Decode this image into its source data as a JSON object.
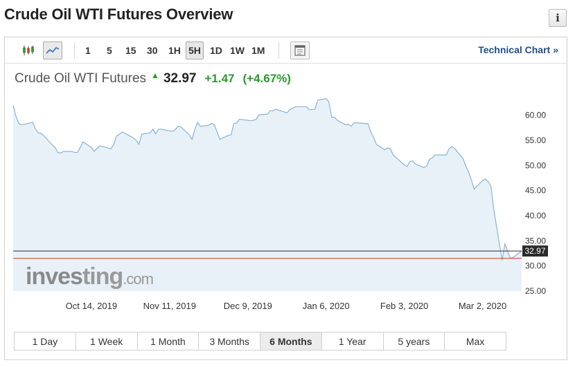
{
  "page": {
    "title": "Crude Oil WTI Futures Overview",
    "info_icon": "info-icon"
  },
  "toolbar": {
    "chart_type_icons": [
      "candlestick-icon",
      "line-chart-icon"
    ],
    "selected_chart_type": "line-chart-icon",
    "timeframes": [
      "1",
      "5",
      "15",
      "30",
      "1H",
      "5H",
      "1D",
      "1W",
      "1M"
    ],
    "active_timeframe": "5H",
    "settings_icon": "chart-settings-icon",
    "technical_chart_label": "Technical Chart",
    "technical_chart_arrow": "»"
  },
  "quote": {
    "name": "Crude Oil WTI Futures",
    "direction_icon": "up-arrow-icon",
    "price": "32.97",
    "change": "+1.47",
    "change_percent": "(+4.67%)",
    "positive_color": "#2a9a2a"
  },
  "watermark": {
    "part1": "inves",
    "part2": "ting",
    "part3": ".com"
  },
  "ranges": {
    "items": [
      "1 Day",
      "1 Week",
      "1 Month",
      "3 Months",
      "6 Months",
      "1 Year",
      "5 years",
      "Max"
    ],
    "active": "6 Months"
  },
  "colors": {
    "line": "#88b3d7",
    "area": "#e3eef6",
    "last_price_line": "#2b2b2b",
    "reference_line": "#d9362c"
  },
  "chart_data": {
    "type": "area",
    "title": "Crude Oil WTI Futures",
    "x_tick_labels": [
      "Oct 14, 2019",
      "Nov 11, 2019",
      "Dec 9, 2019",
      "Jan 6, 2020",
      "Feb 3, 2020",
      "Mar 2, 2020"
    ],
    "y_tick_labels": [
      "60.00",
      "55.00",
      "50.00",
      "45.00",
      "40.00",
      "35.00",
      "30.00",
      "25.00"
    ],
    "ylim": [
      25,
      64.5
    ],
    "grid": false,
    "last_price_label": "32.97",
    "last_price": 32.97,
    "reference_price": 31.5,
    "series": [
      {
        "x": [
          "2019-09-16",
          "2019-09-17",
          "2019-09-18",
          "2019-09-19",
          "2019-09-20",
          "2019-09-23",
          "2019-09-24",
          "2019-09-25",
          "2019-09-26",
          "2019-09-27",
          "2019-09-30",
          "2019-10-01",
          "2019-10-02",
          "2019-10-03",
          "2019-10-04",
          "2019-10-07",
          "2019-10-08",
          "2019-10-09",
          "2019-10-10",
          "2019-10-11",
          "2019-10-14",
          "2019-10-15",
          "2019-10-16",
          "2019-10-17",
          "2019-10-18",
          "2019-10-21",
          "2019-10-22",
          "2019-10-23",
          "2019-10-24",
          "2019-10-25",
          "2019-10-28",
          "2019-10-29",
          "2019-10-30",
          "2019-10-31",
          "2019-11-01",
          "2019-11-04",
          "2019-11-05",
          "2019-11-06",
          "2019-11-07",
          "2019-11-08",
          "2019-11-11",
          "2019-11-12",
          "2019-11-13",
          "2019-11-14",
          "2019-11-15",
          "2019-11-18",
          "2019-11-19",
          "2019-11-20",
          "2019-11-21",
          "2019-11-22",
          "2019-11-25",
          "2019-11-26",
          "2019-11-27",
          "2019-11-29",
          "2019-12-02",
          "2019-12-03",
          "2019-12-04",
          "2019-12-05",
          "2019-12-06",
          "2019-12-09",
          "2019-12-10",
          "2019-12-11",
          "2019-12-12",
          "2019-12-13",
          "2019-12-16",
          "2019-12-17",
          "2019-12-18",
          "2019-12-19",
          "2019-12-20",
          "2019-12-23",
          "2019-12-24",
          "2019-12-26",
          "2019-12-27",
          "2019-12-30",
          "2019-12-31",
          "2020-01-02",
          "2020-01-03",
          "2020-01-06",
          "2020-01-07",
          "2020-01-08",
          "2020-01-09",
          "2020-01-10",
          "2020-01-13",
          "2020-01-14",
          "2020-01-15",
          "2020-01-16",
          "2020-01-17",
          "2020-01-21",
          "2020-01-22",
          "2020-01-23",
          "2020-01-24",
          "2020-01-27",
          "2020-01-28",
          "2020-01-29",
          "2020-01-30",
          "2020-01-31",
          "2020-02-03",
          "2020-02-04",
          "2020-02-05",
          "2020-02-06",
          "2020-02-07",
          "2020-02-10",
          "2020-02-11",
          "2020-02-12",
          "2020-02-13",
          "2020-02-14",
          "2020-02-18",
          "2020-02-19",
          "2020-02-20",
          "2020-02-21",
          "2020-02-24",
          "2020-02-25",
          "2020-02-26",
          "2020-02-27",
          "2020-02-28",
          "2020-03-02",
          "2020-03-03",
          "2020-03-04",
          "2020-03-05",
          "2020-03-06",
          "2020-03-09",
          "2020-03-10",
          "2020-03-11",
          "2020-03-12",
          "2020-03-13",
          "2020-03-16"
        ],
        "y": [
          62.0,
          59.8,
          58.4,
          58.1,
          58.2,
          58.6,
          57.2,
          56.5,
          56.4,
          55.9,
          54.1,
          53.6,
          52.6,
          52.5,
          52.8,
          52.8,
          52.6,
          52.6,
          53.6,
          54.7,
          53.6,
          52.8,
          53.4,
          53.9,
          53.8,
          53.3,
          54.2,
          55.9,
          56.2,
          56.7,
          55.8,
          55.5,
          55.0,
          54.2,
          56.2,
          56.5,
          57.2,
          56.3,
          57.2,
          57.2,
          56.9,
          56.8,
          57.1,
          57.8,
          57.7,
          56.1,
          55.2,
          57.1,
          58.6,
          57.8,
          58.0,
          58.4,
          58.1,
          55.2,
          56.0,
          56.1,
          58.4,
          58.4,
          59.2,
          59.0,
          58.9,
          59.0,
          59.2,
          60.1,
          60.2,
          60.9,
          60.9,
          61.2,
          61.0,
          60.5,
          61.1,
          61.7,
          61.7,
          61.7,
          61.1,
          61.2,
          63.0,
          63.3,
          62.7,
          59.6,
          59.6,
          59.0,
          58.1,
          58.2,
          57.8,
          58.5,
          58.5,
          58.3,
          56.7,
          55.6,
          54.2,
          53.1,
          53.5,
          53.3,
          52.1,
          51.6,
          50.1,
          49.8,
          50.8,
          50.9,
          50.3,
          49.6,
          49.9,
          51.2,
          51.5,
          52.1,
          52.1,
          53.3,
          53.8,
          53.4,
          51.4,
          49.9,
          48.7,
          47.1,
          45.3,
          47.0,
          47.3,
          46.8,
          45.9,
          41.3,
          31.1,
          34.4,
          32.9,
          31.5,
          31.7,
          32.97
        ]
      }
    ]
  }
}
